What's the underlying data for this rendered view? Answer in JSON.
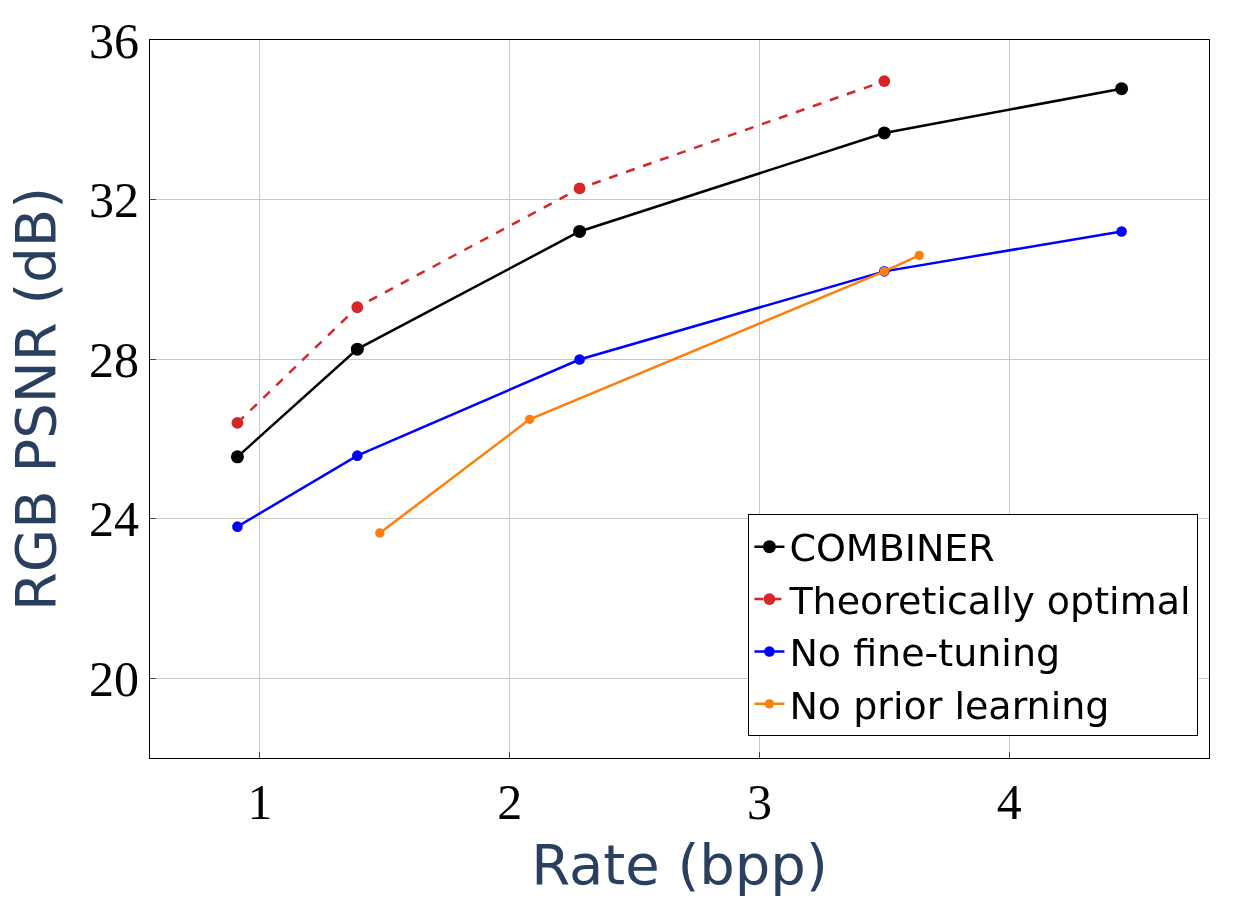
{
  "chart_data": {
    "type": "line",
    "xlabel": "Rate (bpp)",
    "ylabel": "RGB PSNR (dB)",
    "xlim": [
      0.56,
      4.8
    ],
    "ylim": [
      18,
      36
    ],
    "xticks": [
      1,
      2,
      3,
      4
    ],
    "yticks": [
      20,
      24,
      28,
      32,
      36
    ],
    "grid": true,
    "legend": "bottom right",
    "marker": "circle",
    "series": [
      {
        "name": "COMBINER",
        "color": "#000000",
        "line_style": "solid",
        "x": [
          0.91,
          1.39,
          2.28,
          3.5,
          4.45
        ],
        "values": [
          25.55,
          28.25,
          31.2,
          33.67,
          34.78
        ]
      },
      {
        "name": "Theoretically optimal",
        "color": "#d62728",
        "line_style": "dashed",
        "x": [
          0.91,
          1.39,
          2.28,
          3.5
        ],
        "values": [
          26.4,
          29.3,
          32.28,
          34.97
        ]
      },
      {
        "name": "No fine-tuning",
        "color": "#0000ff",
        "line_style": "solid",
        "x": [
          0.91,
          1.39,
          2.28,
          3.5,
          4.45
        ],
        "values": [
          23.8,
          25.58,
          27.99,
          30.2,
          31.2
        ]
      },
      {
        "name": "No prior learning",
        "color": "#ff7f0e",
        "line_style": "solid",
        "x": [
          1.48,
          2.08,
          3.5,
          3.64
        ],
        "values": [
          23.64,
          26.49,
          30.2,
          30.6
        ]
      }
    ]
  }
}
